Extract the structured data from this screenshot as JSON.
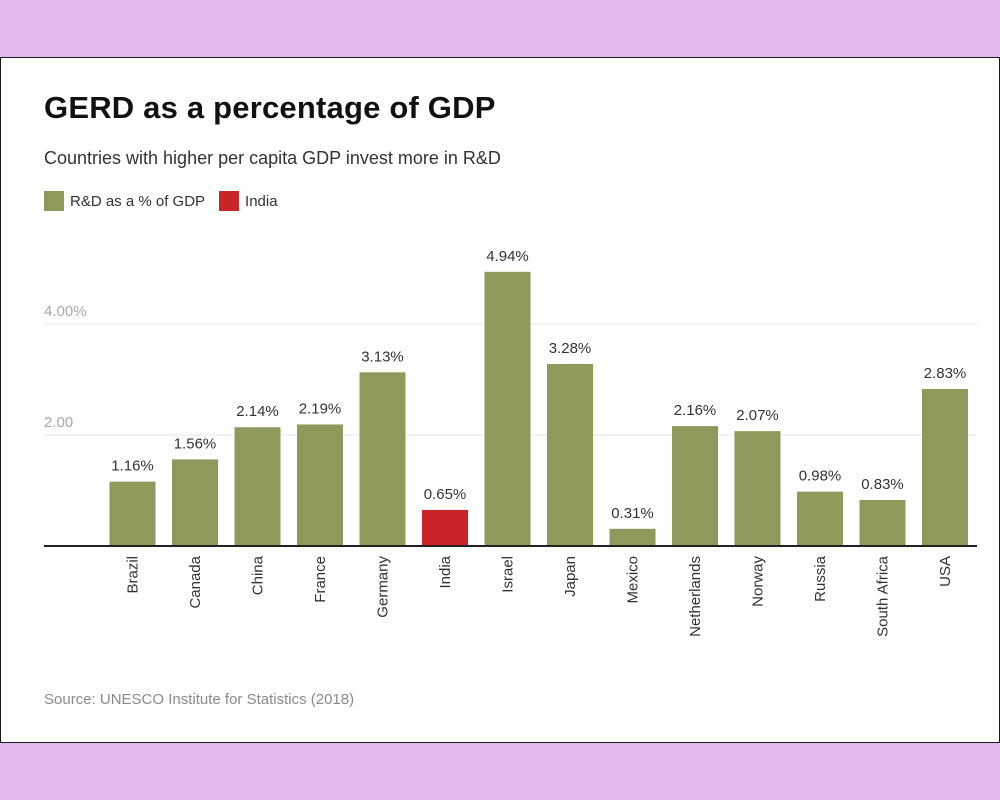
{
  "chart_data": {
    "type": "bar",
    "title": "GERD as a percentage of GDP",
    "subtitle": "Countries with higher per capita GDP invest more in R&D",
    "legend": [
      {
        "label": "R&D as a % of GDP",
        "color": "#8d9a5b"
      },
      {
        "label": "India",
        "color": "#cc2529"
      }
    ],
    "categories": [
      "Brazil",
      "Canada",
      "China",
      "France",
      "Germany",
      "India",
      "Israel",
      "Japan",
      "Mexico",
      "Netherlands",
      "Norway",
      "Russia",
      "South Africa",
      "USA"
    ],
    "values": [
      1.16,
      1.56,
      2.14,
      2.19,
      3.13,
      0.65,
      4.94,
      3.28,
      0.31,
      2.16,
      2.07,
      0.98,
      0.83,
      2.83
    ],
    "data_labels": [
      "1.16%",
      "1.56%",
      "2.14%",
      "2.19%",
      "3.13%",
      "0.65%",
      "4.94%",
      "3.28%",
      "0.31%",
      "2.16%",
      "2.07%",
      "0.98%",
      "0.83%",
      "2.83%"
    ],
    "highlight_category": "India",
    "colors": {
      "default": "#8d9a5b",
      "highlight": "#cc2529"
    },
    "y_ticks": [
      {
        "value": 2,
        "label": "2.00"
      },
      {
        "value": 4,
        "label": "4.00%"
      }
    ],
    "ylim": [
      0,
      5
    ],
    "xlabel": "",
    "ylabel": "",
    "grid": true,
    "source": "Source: UNESCO Institute for Statistics (2018)"
  },
  "colors": {
    "page_background": "#e3b8ed",
    "card_background": "#ffffff"
  }
}
